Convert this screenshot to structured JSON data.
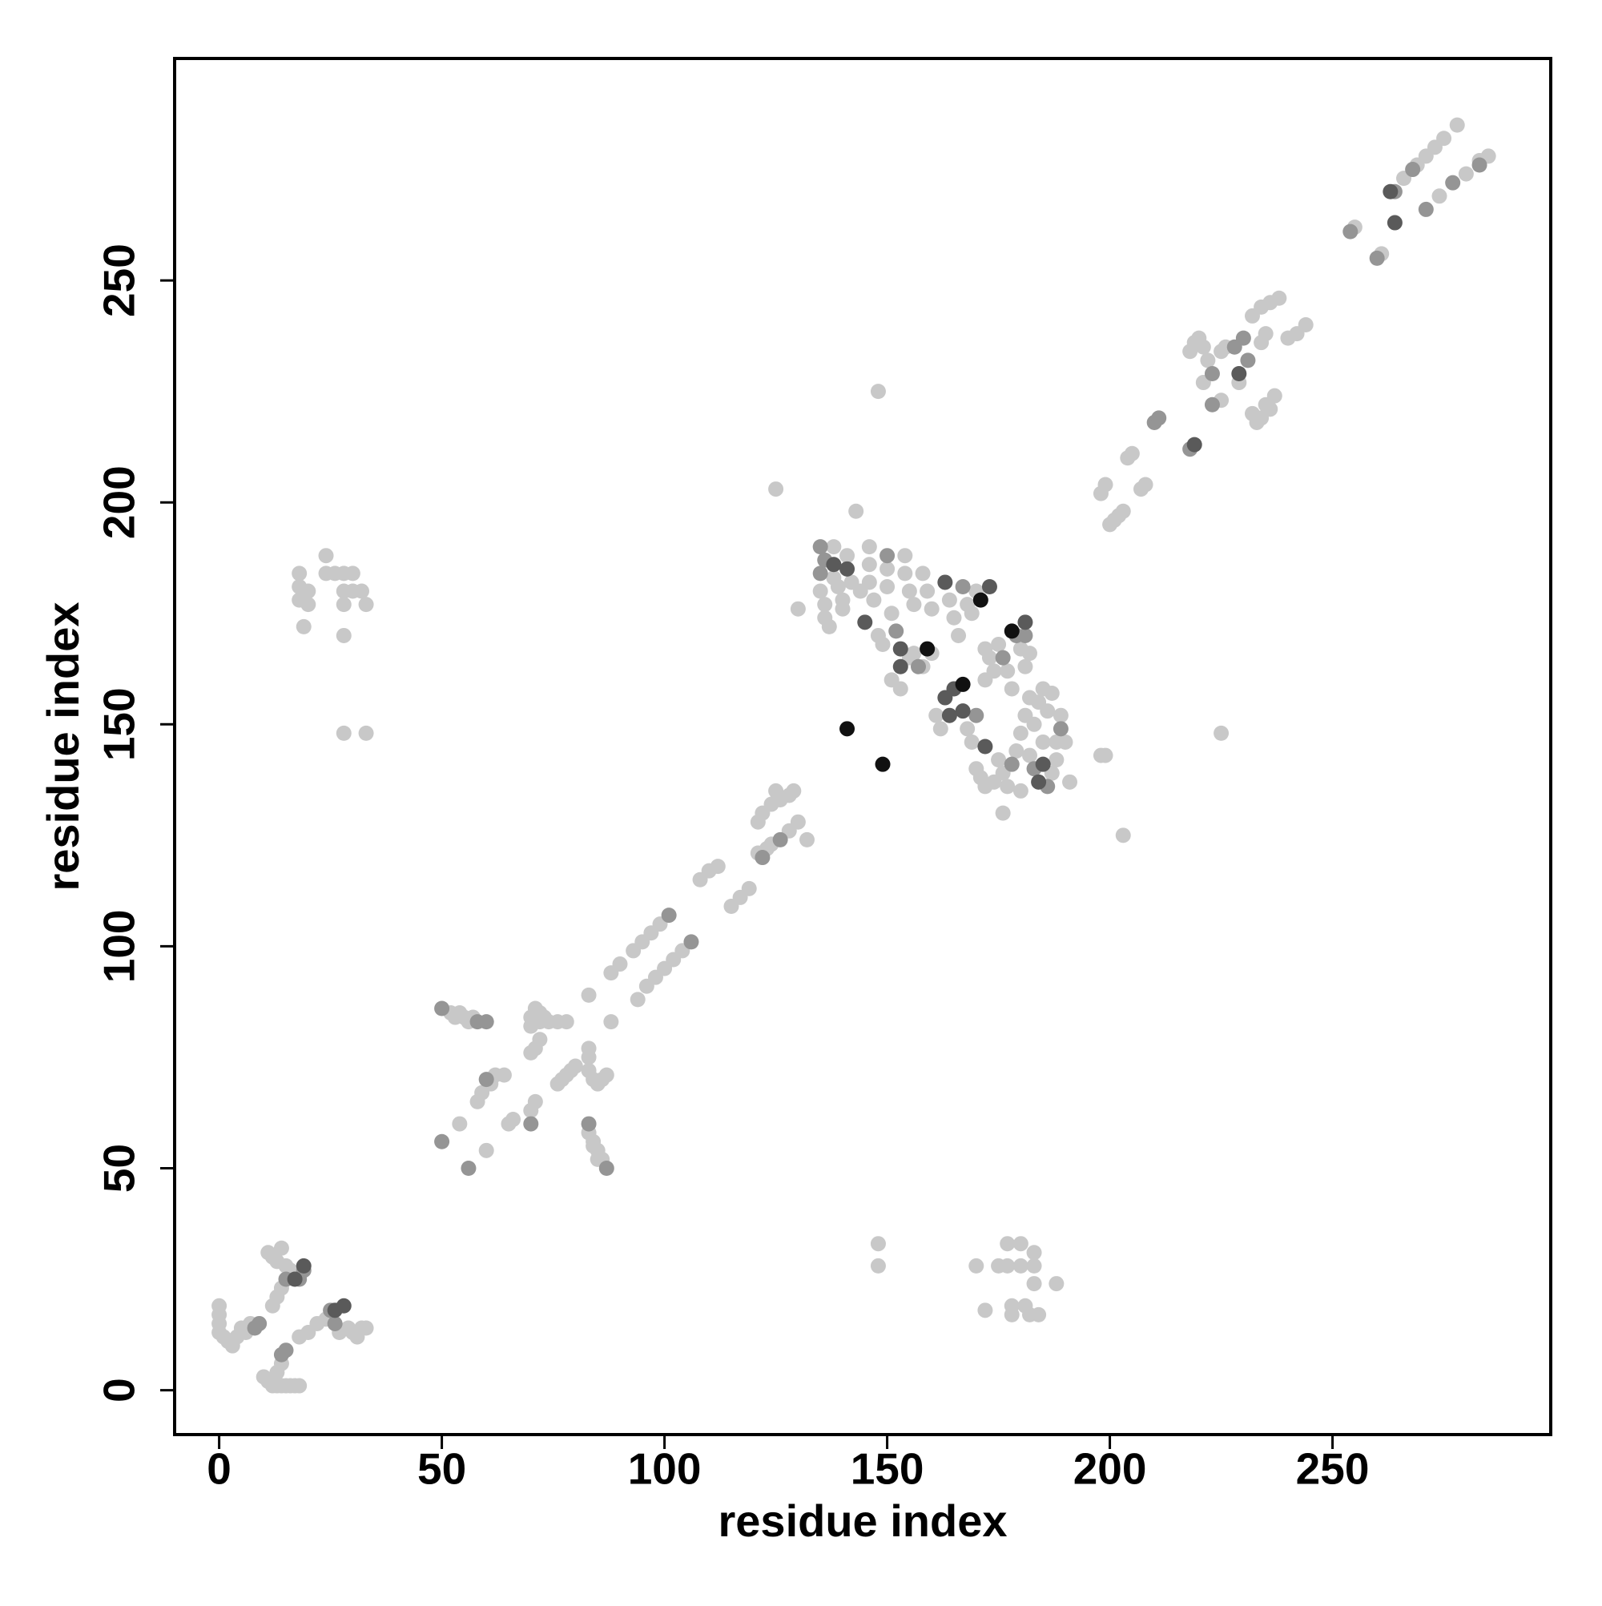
{
  "chart_data": {
    "type": "scatter",
    "x_label": "residue index",
    "y_label": "residue index",
    "xlim": [
      -10,
      299
    ],
    "ylim": [
      -10,
      300
    ],
    "xticks": [
      0,
      50,
      100,
      150,
      200,
      250
    ],
    "yticks": [
      0,
      50,
      100,
      150,
      200,
      250
    ],
    "grid": false,
    "series": [
      {
        "color": "#c8c8c8",
        "x": [
          0,
          0,
          0,
          0,
          1,
          2,
          3,
          4,
          5,
          6,
          7,
          10,
          11,
          12,
          13,
          14,
          15,
          16,
          17,
          18,
          13,
          14,
          11,
          12,
          13,
          14,
          15,
          16,
          12,
          13,
          14,
          18,
          20,
          22,
          24,
          27,
          29,
          30,
          31,
          32,
          33,
          18,
          18,
          18,
          19,
          20,
          20,
          24,
          24,
          26,
          28,
          28,
          28,
          28,
          30,
          30,
          32,
          33,
          28,
          33,
          52,
          53,
          54,
          55,
          56,
          57,
          54,
          60,
          58,
          59,
          61,
          62,
          64,
          65,
          66,
          70,
          71,
          70,
          71,
          72,
          70,
          70,
          71,
          72,
          73,
          74,
          72,
          76,
          78,
          76,
          77,
          78,
          79,
          80,
          83,
          83,
          83,
          83,
          84,
          85,
          86,
          87,
          83,
          84,
          84,
          85,
          85,
          86,
          88,
          88,
          90,
          93,
          95,
          97,
          99,
          94,
          96,
          98,
          100,
          102,
          104,
          108,
          110,
          112,
          115,
          117,
          119,
          121,
          122,
          124,
          125,
          126,
          128,
          129,
          121,
          123,
          124,
          128,
          130,
          132,
          125,
          130,
          135,
          136,
          136,
          137,
          138,
          138,
          139,
          140,
          140,
          141,
          142,
          143,
          144,
          146,
          146,
          146,
          147,
          148,
          149,
          150,
          150,
          151,
          154,
          154,
          155,
          156,
          156,
          158,
          159,
          160,
          161,
          162,
          164,
          165,
          166,
          168,
          169,
          170,
          151,
          153,
          155,
          158,
          160,
          168,
          169,
          172,
          172,
          173,
          174,
          175,
          177,
          178,
          180,
          181,
          182,
          170,
          171,
          172,
          174,
          175,
          176,
          177,
          179,
          180,
          180,
          181,
          182,
          187,
          188,
          188,
          189,
          190,
          191,
          184,
          185,
          186,
          187,
          183,
          185,
          182,
          176,
          199,
          198,
          203,
          225,
          148,
          148,
          148,
          170,
          172,
          175,
          177,
          177,
          178,
          178,
          180,
          180,
          181,
          182,
          183,
          183,
          183,
          184,
          188,
          198,
          199,
          200,
          201,
          202,
          203,
          204,
          205,
          207,
          208,
          218,
          219,
          220,
          221,
          222,
          225,
          226,
          221,
          225,
          229,
          232,
          233,
          234,
          235,
          236,
          237,
          232,
          234,
          236,
          238,
          234,
          235,
          240,
          242,
          244,
          255,
          261,
          266,
          269,
          271,
          273,
          275,
          278,
          274,
          280,
          283,
          285
        ],
        "y": [
          13,
          15,
          17,
          19,
          12,
          11,
          10,
          12,
          14,
          13,
          15,
          3,
          2,
          1,
          1,
          1,
          1,
          1,
          1,
          1,
          4,
          6,
          31,
          30,
          29,
          32,
          28,
          27,
          19,
          21,
          23,
          12,
          13,
          15,
          16,
          13,
          14,
          13,
          12,
          14,
          14,
          184,
          181,
          178,
          172,
          180,
          177,
          188,
          184,
          184,
          184,
          180,
          177,
          170,
          184,
          180,
          180,
          177,
          148,
          148,
          85,
          84,
          85,
          84,
          83,
          84,
          60,
          54,
          65,
          67,
          69,
          71,
          71,
          60,
          61,
          63,
          65,
          76,
          77,
          79,
          82,
          84,
          86,
          85,
          84,
          83,
          83,
          83,
          83,
          69,
          70,
          71,
          72,
          73,
          89,
          77,
          75,
          72,
          70,
          69,
          70,
          71,
          58,
          56,
          55,
          54,
          52,
          52,
          83,
          94,
          96,
          99,
          101,
          103,
          105,
          88,
          91,
          93,
          95,
          97,
          99,
          115,
          117,
          118,
          109,
          111,
          113,
          128,
          130,
          132,
          135,
          133,
          134,
          135,
          121,
          122,
          123,
          126,
          128,
          124,
          203,
          176,
          180,
          177,
          174,
          172,
          190,
          183,
          181,
          178,
          176,
          188,
          182,
          198,
          180,
          190,
          186,
          182,
          178,
          170,
          168,
          185,
          181,
          175,
          188,
          184,
          180,
          177,
          166,
          184,
          180,
          176,
          152,
          149,
          178,
          174,
          170,
          177,
          175,
          180,
          160,
          158,
          165,
          163,
          166,
          149,
          146,
          160,
          167,
          165,
          162,
          168,
          162,
          158,
          167,
          163,
          166,
          140,
          138,
          136,
          137,
          142,
          139,
          136,
          144,
          135,
          148,
          152,
          156,
          139,
          142,
          146,
          152,
          146,
          137,
          155,
          158,
          153,
          157,
          150,
          146,
          143,
          130,
          143,
          143,
          125,
          148,
          225,
          33,
          28,
          28,
          18,
          28,
          33,
          28,
          17,
          19,
          33,
          28,
          19,
          17,
          31,
          28,
          24,
          17,
          24,
          202,
          204,
          195,
          196,
          197,
          198,
          210,
          211,
          203,
          204,
          234,
          236,
          237,
          235,
          232,
          234,
          235,
          227,
          223,
          227,
          220,
          218,
          219,
          222,
          221,
          224,
          242,
          244,
          245,
          246,
          236,
          238,
          237,
          238,
          240,
          262,
          256,
          273,
          276,
          278,
          280,
          282,
          285,
          269,
          274,
          277,
          278
        ]
      },
      {
        "color": "#959595",
        "x": [
          8,
          9,
          14,
          15,
          15,
          18,
          19,
          25,
          26,
          50,
          58,
          60,
          50,
          56,
          60,
          70,
          83,
          87,
          101,
          106,
          122,
          126,
          135,
          135,
          136,
          150,
          152,
          157,
          167,
          170,
          176,
          179,
          178,
          183,
          186,
          189,
          181,
          210,
          211,
          218,
          223,
          223,
          228,
          230,
          231,
          254,
          260,
          264,
          268,
          271,
          277,
          283
        ],
        "y": [
          14,
          15,
          8,
          9,
          25,
          25,
          27,
          18,
          15,
          86,
          83,
          83,
          56,
          50,
          70,
          60,
          60,
          50,
          107,
          101,
          120,
          124,
          190,
          184,
          187,
          188,
          171,
          163,
          181,
          152,
          165,
          170,
          141,
          140,
          136,
          149,
          170,
          218,
          219,
          212,
          229,
          222,
          235,
          237,
          232,
          261,
          255,
          270,
          275,
          266,
          272,
          276
        ]
      },
      {
        "color": "#5a5a5a",
        "x": [
          17,
          19,
          26,
          28,
          138,
          141,
          145,
          153,
          153,
          163,
          163,
          164,
          165,
          167,
          172,
          184,
          185,
          173,
          181,
          219,
          229,
          263,
          264
        ],
        "y": [
          25,
          28,
          18,
          19,
          186,
          185,
          173,
          167,
          163,
          182,
          156,
          152,
          158,
          153,
          145,
          137,
          141,
          181,
          173,
          213,
          229,
          270,
          263
        ]
      },
      {
        "color": "#111111",
        "x": [
          141,
          149,
          159,
          167,
          171,
          178
        ],
        "y": [
          149,
          141,
          167,
          159,
          178,
          171
        ]
      }
    ]
  }
}
